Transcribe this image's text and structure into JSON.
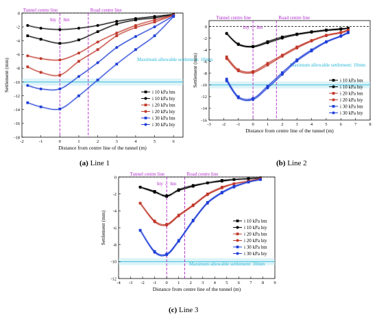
{
  "chart_data": [
    {
      "type": "line",
      "caption_label": "(a)",
      "caption_text": " Line 1",
      "xlabel": "Distance from centre line of the tunnel (m)",
      "ylabel": "Settlement  (mm)",
      "xlim": [
        -2,
        6.5
      ],
      "ylim": [
        -18,
        0
      ],
      "xticks": [
        -2,
        -1,
        0,
        1,
        2,
        3,
        4,
        5,
        6
      ],
      "yticks": [
        0,
        -2,
        -4,
        -6,
        -8,
        -10,
        -12,
        -14,
        -16,
        -18
      ],
      "annotations": {
        "tunnel_centre": "Tunnel centre line",
        "road_centre": "Road centre line",
        "direction": "hty ← htn",
        "allowable": "Maximum allowable settlement: 10mm"
      },
      "tunnel_x": 0,
      "road_x": 1.5,
      "allowable_y": -10,
      "series": [
        {
          "name": "i 10 kPa htn",
          "color": "#000000",
          "marker": "square",
          "x": [
            -1.7,
            -1,
            0,
            1,
            2,
            3,
            4,
            5,
            6
          ],
          "y": [
            -3.3,
            -3.8,
            -4.4,
            -3.9,
            -2.7,
            -1.6,
            -1.0,
            -0.7,
            -0.2
          ]
        },
        {
          "name": "i 10 kPa hty",
          "color": "#000000",
          "marker": "circle",
          "x": [
            -1.7,
            -1,
            0,
            1,
            2,
            3,
            4,
            5,
            6
          ],
          "y": [
            -1.8,
            -2.2,
            -2.4,
            -2.2,
            -1.8,
            -1.2,
            -0.8,
            -0.5,
            -0.2
          ]
        },
        {
          "name": "i 20 kPa htn",
          "color": "#c0392b",
          "marker": "square",
          "x": [
            -1.7,
            -1,
            0,
            1,
            2,
            3,
            4,
            5,
            6
          ],
          "y": [
            -7.8,
            -8.6,
            -9.0,
            -7.0,
            -5.3,
            -3.3,
            -2.1,
            -1.3,
            -0.3
          ]
        },
        {
          "name": "i 20 kPa hty",
          "color": "#c0392b",
          "marker": "circle",
          "x": [
            -1.7,
            -1,
            0,
            1,
            2,
            3,
            4,
            5,
            6
          ],
          "y": [
            -6.2,
            -6.6,
            -6.8,
            -5.8,
            -4.2,
            -2.9,
            -1.8,
            -1.0,
            -0.3
          ]
        },
        {
          "name": "i 30 kPa htn",
          "color": "#1f3fd6",
          "marker": "square",
          "x": [
            -1.7,
            -1,
            0,
            1,
            2,
            3,
            4,
            5,
            6
          ],
          "y": [
            -13.0,
            -13.6,
            -13.9,
            -12.0,
            -9.7,
            -7.4,
            -5.3,
            -3.3,
            -0.5
          ]
        },
        {
          "name": "i 30 kPa hty",
          "color": "#1f3fd6",
          "marker": "circle",
          "x": [
            -1.7,
            -1,
            0,
            1,
            2,
            3,
            4,
            5,
            6
          ],
          "y": [
            -10.5,
            -11.0,
            -11.0,
            -9.2,
            -7.2,
            -5.0,
            -3.4,
            -2.0,
            -0.4
          ]
        }
      ]
    },
    {
      "type": "line",
      "caption_label": "(b)",
      "caption_text": " Line 2",
      "xlabel": "Distance from centre line of the tunnel (m)",
      "ylabel": "Settlement  (mm)",
      "xlim": [
        -3,
        8
      ],
      "ylim": [
        -16,
        1
      ],
      "xticks": [
        -3,
        -2,
        -1,
        0,
        1,
        2,
        3,
        4,
        5,
        6,
        7,
        8
      ],
      "yticks": [
        0,
        -2,
        -4,
        -6,
        -8,
        -10,
        -12,
        -14,
        -16
      ],
      "annotations": {
        "tunnel_centre": "Tunnel centre line",
        "road_centre": "Road centre line",
        "direction": "hty ← htn",
        "allowable": "Maximum allowable settlement: 10mm"
      },
      "tunnel_x": 0,
      "road_x": 1.6,
      "allowable_y": -10,
      "series": [
        {
          "name": "i 10 kPa htn",
          "color": "#000000",
          "marker": "square",
          "x": [
            -1.8,
            -1,
            0,
            1,
            2,
            3,
            4,
            5,
            6,
            6.5
          ],
          "y": [
            -1.2,
            -3.0,
            -3.4,
            -2.6,
            -1.8,
            -1.3,
            -0.9,
            -0.6,
            -0.4,
            -0.3
          ]
        },
        {
          "name": "i 10 kPa hty",
          "color": "#000000",
          "marker": "circle",
          "x": [
            -1.8,
            -1,
            0,
            1,
            2,
            3,
            4,
            5,
            6,
            6.5
          ],
          "y": [
            -1.2,
            -3.1,
            -3.5,
            -2.8,
            -2.0,
            -1.4,
            -1.0,
            -0.7,
            -0.5,
            -0.3
          ]
        },
        {
          "name": "i 20 kPa htn",
          "color": "#c0392b",
          "marker": "square",
          "x": [
            -1.8,
            -1,
            0,
            1,
            2,
            3,
            4,
            5,
            6,
            6.5
          ],
          "y": [
            -5.2,
            -7.4,
            -7.7,
            -6.3,
            -4.9,
            -3.5,
            -2.4,
            -1.5,
            -1.0,
            -0.6
          ]
        },
        {
          "name": "i 20 kPa hty",
          "color": "#c0392b",
          "marker": "circle",
          "x": [
            -1.8,
            -1,
            0,
            1,
            2,
            3,
            4,
            5,
            6,
            6.5
          ],
          "y": [
            -5.5,
            -7.6,
            -7.9,
            -6.6,
            -5.1,
            -3.7,
            -2.5,
            -1.6,
            -1.1,
            -0.7
          ]
        },
        {
          "name": "i 30 kPa htn",
          "color": "#1f3fd6",
          "marker": "square",
          "x": [
            -1.8,
            -1,
            0,
            1,
            2,
            3,
            4,
            5,
            6,
            6.5
          ],
          "y": [
            -9.0,
            -12.0,
            -12.3,
            -10.2,
            -7.9,
            -5.7,
            -4.0,
            -2.6,
            -1.6,
            -1.0
          ]
        },
        {
          "name": "i 30 kPa hty",
          "color": "#1f3fd6",
          "marker": "circle",
          "x": [
            -1.8,
            -1,
            0,
            1,
            2,
            3,
            4,
            5,
            6,
            6.5
          ],
          "y": [
            -9.3,
            -12.2,
            -12.5,
            -10.5,
            -8.2,
            -5.9,
            -4.2,
            -2.7,
            -1.7,
            -1.1
          ]
        }
      ]
    },
    {
      "type": "line",
      "caption_label": "(c)",
      "caption_text": " Line 3",
      "xlabel": "Distance from centre line of the tunnel (m)",
      "ylabel": "Settlement  (mm)",
      "xlim": [
        -4,
        9
      ],
      "ylim": [
        -12,
        0
      ],
      "xticks": [
        -4,
        -3,
        -2,
        -1,
        0,
        1,
        2,
        3,
        4,
        5,
        6,
        7,
        8,
        9
      ],
      "yticks": [
        0,
        -2,
        -4,
        -6,
        -8,
        -10,
        -12
      ],
      "annotations": {
        "tunnel_centre": "Tunnel centre line",
        "road_centre": "Road centre line",
        "direction": "hty ← htn",
        "allowable": "Maximum allowable settlement: 10mm"
      },
      "tunnel_x": 0,
      "road_x": 1.5,
      "allowable_y": -10,
      "series": [
        {
          "name": "i 10 kPa htn",
          "color": "#000000",
          "marker": "square",
          "x": [
            -2.2,
            -1,
            0,
            1,
            2.2,
            3.4,
            4.6,
            5.6,
            6.8,
            7.8
          ],
          "y": [
            -1.2,
            -1.7,
            -2.3,
            -1.5,
            -1.0,
            -0.7,
            -0.4,
            -0.3,
            -0.2,
            -0.1
          ]
        },
        {
          "name": "i 10 kPa hty",
          "color": "#000000",
          "marker": "circle",
          "x": [
            -2.2,
            -1,
            0,
            1,
            2.2,
            3.4,
            4.6,
            5.6,
            6.8,
            7.8
          ],
          "y": [
            -1.2,
            -1.8,
            -2.2,
            -1.6,
            -1.1,
            -0.7,
            -0.5,
            -0.3,
            -0.2,
            -0.1
          ]
        },
        {
          "name": "i 20 kPa htn",
          "color": "#c0392b",
          "marker": "square",
          "x": [
            -2.2,
            -1,
            0,
            1,
            2.2,
            3.4,
            4.6,
            5.6,
            6.8,
            7.8
          ],
          "y": [
            -3.1,
            -5.2,
            -5.6,
            -4.5,
            -3.3,
            -2.0,
            -1.2,
            -0.8,
            -0.5,
            -0.2
          ]
        },
        {
          "name": "i 20 kPa hty",
          "color": "#c0392b",
          "marker": "circle",
          "x": [
            -2.2,
            -1,
            0,
            1,
            2.2,
            3.4,
            4.6,
            5.6,
            6.8,
            7.8
          ],
          "y": [
            -3.1,
            -5.3,
            -5.7,
            -4.6,
            -3.4,
            -2.1,
            -1.3,
            -0.8,
            -0.5,
            -0.2
          ]
        },
        {
          "name": "i 30 kPa htn",
          "color": "#1f3fd6",
          "marker": "square",
          "x": [
            -2.2,
            -1,
            0,
            1,
            2.2,
            3.4,
            4.6,
            5.6,
            6.8,
            7.8
          ],
          "y": [
            -6.3,
            -8.8,
            -9.1,
            -7.5,
            -5.1,
            -3.0,
            -1.8,
            -1.1,
            -0.6,
            -0.3
          ]
        },
        {
          "name": "i 30 kPa hty",
          "color": "#1f3fd6",
          "marker": "circle",
          "x": [
            -2.2,
            -1,
            0,
            1,
            2.2,
            3.4,
            4.6,
            5.6,
            6.8,
            7.8
          ],
          "y": [
            -6.3,
            -8.9,
            -9.2,
            -7.6,
            -5.2,
            -3.1,
            -1.9,
            -1.2,
            -0.6,
            -0.3
          ]
        }
      ]
    }
  ]
}
